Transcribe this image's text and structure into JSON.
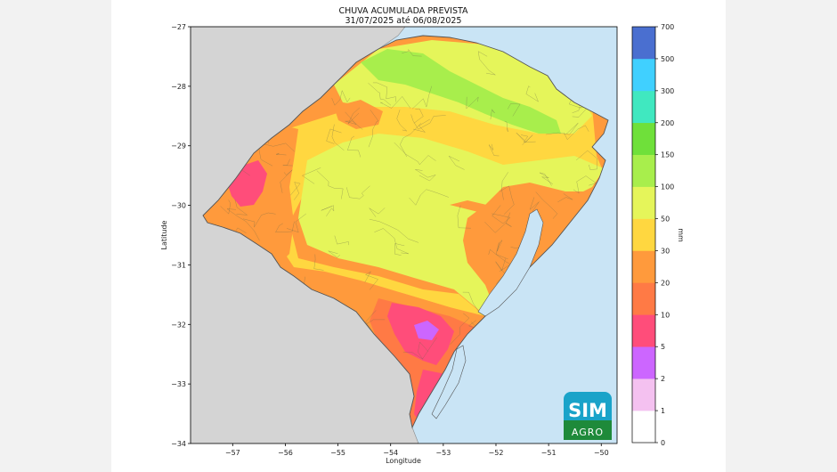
{
  "figure": {
    "title_line1": "CHUVA ACUMULADA PREVISTA",
    "title_line2": "31/07/2025 até 06/08/2025"
  },
  "map": {
    "xlabel": "Longitude",
    "ylabel": "Latitude",
    "xlim": [
      -57.8,
      -49.7
    ],
    "ylim": [
      -34,
      -27
    ],
    "x_ticks": [
      -57,
      -56,
      -55,
      -54,
      -53,
      -52,
      -51,
      -50
    ],
    "x_tick_labels": [
      "−57",
      "−56",
      "−55",
      "−54",
      "−53",
      "−52",
      "−51",
      "−50"
    ],
    "y_ticks": [
      -27,
      -28,
      -29,
      -30,
      -31,
      -32,
      -33,
      -34
    ],
    "y_tick_labels": [
      "−27",
      "−28",
      "−29",
      "−30",
      "−31",
      "−32",
      "−33",
      "−34"
    ],
    "colors": {
      "land_outside": "#d4d4d4",
      "ocean": "#c9e4f5",
      "border": "#555555"
    }
  },
  "colorbar": {
    "label": "mm",
    "levels": [
      "0",
      "1",
      "2",
      "5",
      "10",
      "20",
      "30",
      "50",
      "100",
      "150",
      "200",
      "300",
      "500",
      "700"
    ],
    "colors": [
      "#ffffff",
      "#f4c1f0",
      "#cc66ff",
      "#ff4d7a",
      "#ff7a45",
      "#ff9a3c",
      "#ffd740",
      "#e5f55a",
      "#a8ee4c",
      "#6fe03a",
      "#40e8c0",
      "#40d0ff",
      "#4a6fd0",
      "#3e3ea8"
    ]
  },
  "logo": {
    "line1": "SIM",
    "line2": "AGRO"
  },
  "rain_zones": [
    {
      "level": "20",
      "color": "#ff9a3c"
    },
    {
      "level": "30",
      "color": "#ffd740"
    },
    {
      "level": "50",
      "color": "#e5f55a"
    },
    {
      "level": "100",
      "color": "#a8ee4c"
    },
    {
      "level": "10",
      "color": "#ff7a45"
    },
    {
      "level": "5",
      "color": "#ff4d7a"
    },
    {
      "level": "2",
      "color": "#cc66ff"
    }
  ]
}
